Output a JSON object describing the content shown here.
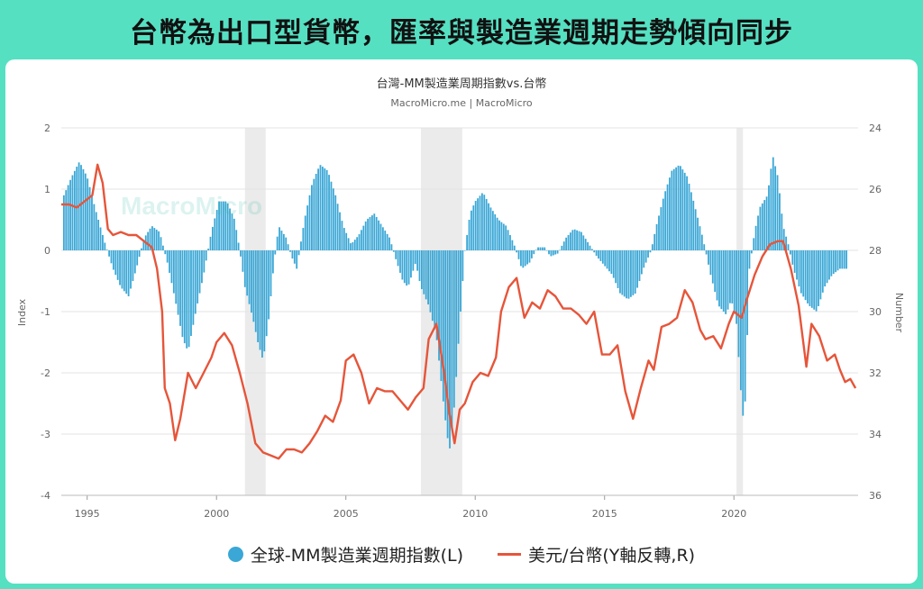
{
  "headline": "台幣為出口型貨幣，匯率與製造業週期走勢傾向同步",
  "watermark": "MacroMicro",
  "colors": {
    "bars": "#3aa7d6",
    "line": "#e6553a",
    "recession_shade": "#ebebeb"
  },
  "chart_data": {
    "type": "bar+line",
    "title": "台灣-MM製造業周期指數vs.台幣",
    "subtitle": "MacroMicro.me | MacroMicro",
    "left_axis_label": "Index",
    "right_axis_label": "Number",
    "left_ylim": [
      -4,
      2
    ],
    "left_ticks": [
      "2",
      "1",
      "0",
      "-1",
      "-2",
      "-3",
      "-4"
    ],
    "right_ylim_reversed": [
      24,
      36
    ],
    "right_ticks": [
      "24",
      "26",
      "28",
      "30",
      "32",
      "34",
      "36"
    ],
    "x_range": [
      1994.0,
      2024.8
    ],
    "x_ticks": [
      "1995",
      "2000",
      "2005",
      "2010",
      "2015",
      "2020"
    ],
    "shaded_periods": [
      [
        2001.1,
        2001.9
      ],
      [
        2007.9,
        2009.5
      ],
      [
        2020.1,
        2020.35
      ]
    ],
    "legend": {
      "bars": "全球-MM製造業週期指數(L)",
      "line": "美元/台幣(Y軸反轉,R)"
    },
    "series": [
      {
        "name": "全球-MM製造業週期指數(L)",
        "type": "bar",
        "axis": "left",
        "points": [
          [
            1994.1,
            0.9
          ],
          [
            1994.4,
            1.2
          ],
          [
            1994.7,
            1.45
          ],
          [
            1995.0,
            1.2
          ],
          [
            1995.3,
            0.7
          ],
          [
            1995.7,
            0.1
          ],
          [
            1996.0,
            -0.3
          ],
          [
            1996.3,
            -0.6
          ],
          [
            1996.6,
            -0.75
          ],
          [
            1996.9,
            -0.3
          ],
          [
            1997.2,
            0.2
          ],
          [
            1997.5,
            0.4
          ],
          [
            1997.8,
            0.3
          ],
          [
            1998.1,
            -0.2
          ],
          [
            1998.4,
            -0.8
          ],
          [
            1998.7,
            -1.45
          ],
          [
            1998.9,
            -1.65
          ],
          [
            1999.2,
            -1.0
          ],
          [
            1999.5,
            -0.4
          ],
          [
            1999.8,
            0.3
          ],
          [
            2000.1,
            0.8
          ],
          [
            2000.4,
            0.8
          ],
          [
            2000.7,
            0.5
          ],
          [
            2000.9,
            0.0
          ],
          [
            2001.1,
            -0.6
          ],
          [
            2001.4,
            -1.1
          ],
          [
            2001.6,
            -1.5
          ],
          [
            2001.8,
            -1.8
          ],
          [
            2002.0,
            -1.2
          ],
          [
            2002.2,
            -0.3
          ],
          [
            2002.4,
            0.4
          ],
          [
            2002.7,
            0.2
          ],
          [
            2002.9,
            -0.1
          ],
          [
            2003.1,
            -0.3
          ],
          [
            2003.4,
            0.5
          ],
          [
            2003.7,
            1.1
          ],
          [
            2004.0,
            1.4
          ],
          [
            2004.3,
            1.3
          ],
          [
            2004.6,
            0.9
          ],
          [
            2004.9,
            0.4
          ],
          [
            2005.2,
            0.1
          ],
          [
            2005.5,
            0.25
          ],
          [
            2005.8,
            0.5
          ],
          [
            2006.1,
            0.6
          ],
          [
            2006.4,
            0.4
          ],
          [
            2006.7,
            0.2
          ],
          [
            2006.9,
            -0.1
          ],
          [
            2007.2,
            -0.5
          ],
          [
            2007.4,
            -0.6
          ],
          [
            2007.7,
            -0.2
          ],
          [
            2007.9,
            -0.6
          ],
          [
            2008.2,
            -0.9
          ],
          [
            2008.5,
            -1.4
          ],
          [
            2008.8,
            -2.6
          ],
          [
            2009.0,
            -3.3
          ],
          [
            2009.2,
            -2.5
          ],
          [
            2009.4,
            -1.2
          ],
          [
            2009.6,
            0.0
          ],
          [
            2009.8,
            0.6
          ],
          [
            2010.0,
            0.8
          ],
          [
            2010.3,
            0.95
          ],
          [
            2010.6,
            0.7
          ],
          [
            2010.9,
            0.5
          ],
          [
            2011.2,
            0.4
          ],
          [
            2011.5,
            0.1
          ],
          [
            2011.8,
            -0.3
          ],
          [
            2012.1,
            -0.2
          ],
          [
            2012.4,
            0.05
          ],
          [
            2012.7,
            0.05
          ],
          [
            2012.9,
            -0.1
          ],
          [
            2013.2,
            -0.05
          ],
          [
            2013.5,
            0.2
          ],
          [
            2013.8,
            0.35
          ],
          [
            2014.1,
            0.3
          ],
          [
            2014.4,
            0.1
          ],
          [
            2014.7,
            -0.1
          ],
          [
            2015.0,
            -0.25
          ],
          [
            2015.3,
            -0.4
          ],
          [
            2015.6,
            -0.7
          ],
          [
            2015.9,
            -0.8
          ],
          [
            2016.2,
            -0.7
          ],
          [
            2016.5,
            -0.3
          ],
          [
            2016.8,
            0.0
          ],
          [
            2017.0,
            0.4
          ],
          [
            2017.3,
            0.9
          ],
          [
            2017.6,
            1.3
          ],
          [
            2017.9,
            1.4
          ],
          [
            2018.2,
            1.2
          ],
          [
            2018.5,
            0.7
          ],
          [
            2018.8,
            0.2
          ],
          [
            2019.1,
            -0.4
          ],
          [
            2019.4,
            -0.9
          ],
          [
            2019.7,
            -1.05
          ],
          [
            2019.9,
            -0.8
          ],
          [
            2020.1,
            -1.2
          ],
          [
            2020.3,
            -2.5
          ],
          [
            2020.4,
            -2.9
          ],
          [
            2020.6,
            -0.3
          ],
          [
            2020.8,
            0.3
          ],
          [
            2021.0,
            0.7
          ],
          [
            2021.3,
            0.9
          ],
          [
            2021.5,
            1.55
          ],
          [
            2021.7,
            1.2
          ],
          [
            2021.9,
            0.4
          ],
          [
            2022.1,
            0.1
          ],
          [
            2022.3,
            -0.3
          ],
          [
            2022.6,
            -0.7
          ],
          [
            2022.9,
            -0.9
          ],
          [
            2023.2,
            -1.0
          ],
          [
            2023.5,
            -0.6
          ],
          [
            2023.8,
            -0.4
          ],
          [
            2024.1,
            -0.3
          ],
          [
            2024.4,
            -0.3
          ]
        ]
      },
      {
        "name": "美元/台幣(Y軸反轉,R)",
        "type": "line",
        "axis": "right",
        "points": [
          [
            1994.0,
            26.5
          ],
          [
            1994.3,
            26.5
          ],
          [
            1994.6,
            26.6
          ],
          [
            1994.9,
            26.4
          ],
          [
            1995.2,
            26.2
          ],
          [
            1995.4,
            25.2
          ],
          [
            1995.6,
            25.8
          ],
          [
            1995.8,
            27.3
          ],
          [
            1996.0,
            27.5
          ],
          [
            1996.3,
            27.4
          ],
          [
            1996.6,
            27.5
          ],
          [
            1996.9,
            27.5
          ],
          [
            1997.2,
            27.7
          ],
          [
            1997.5,
            27.9
          ],
          [
            1997.7,
            28.6
          ],
          [
            1997.9,
            30.0
          ],
          [
            1998.0,
            32.5
          ],
          [
            1998.2,
            33.0
          ],
          [
            1998.4,
            34.2
          ],
          [
            1998.6,
            33.5
          ],
          [
            1998.9,
            32.0
          ],
          [
            1999.2,
            32.5
          ],
          [
            1999.5,
            32.0
          ],
          [
            1999.8,
            31.5
          ],
          [
            2000.0,
            31.0
          ],
          [
            2000.3,
            30.7
          ],
          [
            2000.6,
            31.1
          ],
          [
            2000.9,
            32.0
          ],
          [
            2001.2,
            33.0
          ],
          [
            2001.5,
            34.3
          ],
          [
            2001.8,
            34.6
          ],
          [
            2002.1,
            34.7
          ],
          [
            2002.4,
            34.8
          ],
          [
            2002.7,
            34.5
          ],
          [
            2003.0,
            34.5
          ],
          [
            2003.3,
            34.6
          ],
          [
            2003.6,
            34.3
          ],
          [
            2003.9,
            33.9
          ],
          [
            2004.2,
            33.4
          ],
          [
            2004.5,
            33.6
          ],
          [
            2004.8,
            32.9
          ],
          [
            2005.0,
            31.6
          ],
          [
            2005.3,
            31.4
          ],
          [
            2005.6,
            32.0
          ],
          [
            2005.9,
            33.0
          ],
          [
            2006.2,
            32.5
          ],
          [
            2006.5,
            32.6
          ],
          [
            2006.8,
            32.6
          ],
          [
            2007.1,
            32.9
          ],
          [
            2007.4,
            33.2
          ],
          [
            2007.7,
            32.8
          ],
          [
            2008.0,
            32.5
          ],
          [
            2008.2,
            30.9
          ],
          [
            2008.5,
            30.4
          ],
          [
            2008.8,
            32.0
          ],
          [
            2009.0,
            33.3
          ],
          [
            2009.2,
            34.3
          ],
          [
            2009.4,
            33.2
          ],
          [
            2009.6,
            33.0
          ],
          [
            2009.9,
            32.3
          ],
          [
            2010.2,
            32.0
          ],
          [
            2010.5,
            32.1
          ],
          [
            2010.8,
            31.5
          ],
          [
            2011.0,
            30.0
          ],
          [
            2011.3,
            29.2
          ],
          [
            2011.6,
            28.9
          ],
          [
            2011.9,
            30.2
          ],
          [
            2012.2,
            29.7
          ],
          [
            2012.5,
            29.9
          ],
          [
            2012.8,
            29.3
          ],
          [
            2013.1,
            29.5
          ],
          [
            2013.4,
            29.9
          ],
          [
            2013.7,
            29.9
          ],
          [
            2014.0,
            30.1
          ],
          [
            2014.3,
            30.4
          ],
          [
            2014.6,
            30.0
          ],
          [
            2014.9,
            31.4
          ],
          [
            2015.2,
            31.4
          ],
          [
            2015.5,
            31.1
          ],
          [
            2015.8,
            32.6
          ],
          [
            2016.1,
            33.5
          ],
          [
            2016.4,
            32.5
          ],
          [
            2016.7,
            31.6
          ],
          [
            2016.9,
            31.9
          ],
          [
            2017.2,
            30.5
          ],
          [
            2017.5,
            30.4
          ],
          [
            2017.8,
            30.2
          ],
          [
            2018.1,
            29.3
          ],
          [
            2018.4,
            29.7
          ],
          [
            2018.7,
            30.6
          ],
          [
            2018.9,
            30.9
          ],
          [
            2019.2,
            30.8
          ],
          [
            2019.5,
            31.2
          ],
          [
            2019.8,
            30.4
          ],
          [
            2020.0,
            30.0
          ],
          [
            2020.3,
            30.2
          ],
          [
            2020.5,
            29.6
          ],
          [
            2020.8,
            28.8
          ],
          [
            2021.1,
            28.2
          ],
          [
            2021.4,
            27.8
          ],
          [
            2021.7,
            27.7
          ],
          [
            2021.9,
            27.7
          ],
          [
            2022.2,
            28.6
          ],
          [
            2022.5,
            29.8
          ],
          [
            2022.8,
            31.8
          ],
          [
            2023.0,
            30.4
          ],
          [
            2023.3,
            30.8
          ],
          [
            2023.6,
            31.6
          ],
          [
            2023.9,
            31.4
          ],
          [
            2024.1,
            31.9
          ],
          [
            2024.3,
            32.3
          ],
          [
            2024.5,
            32.2
          ],
          [
            2024.7,
            32.5
          ]
        ]
      }
    ]
  }
}
